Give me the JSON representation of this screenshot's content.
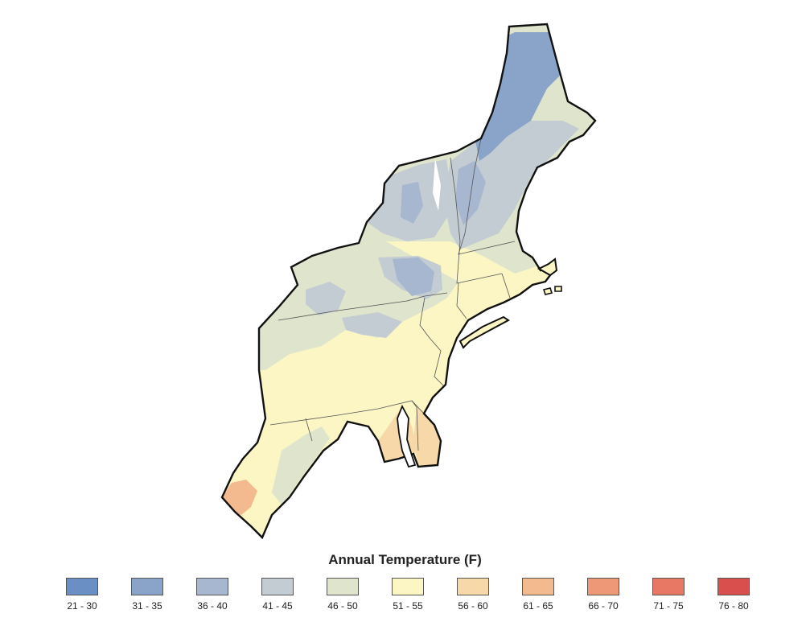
{
  "legend": {
    "title": "Annual Temperature (F)",
    "bins": [
      {
        "label": "21 - 30",
        "color": "#6a8fc4"
      },
      {
        "label": "31 - 35",
        "color": "#8aa3c8"
      },
      {
        "label": "36 - 40",
        "color": "#a7b7cf"
      },
      {
        "label": "41 - 45",
        "color": "#c3ccd2"
      },
      {
        "label": "46 - 50",
        "color": "#dfe5cc"
      },
      {
        "label": "51 - 55",
        "color": "#fbf6c4"
      },
      {
        "label": "56 - 60",
        "color": "#f7d8a8"
      },
      {
        "label": "61 - 65",
        "color": "#f3b98f"
      },
      {
        "label": "66 - 70",
        "color": "#ee9877"
      },
      {
        "label": "71 - 75",
        "color": "#e87763"
      },
      {
        "label": "76 - 80",
        "color": "#d94f4e"
      }
    ]
  }
}
